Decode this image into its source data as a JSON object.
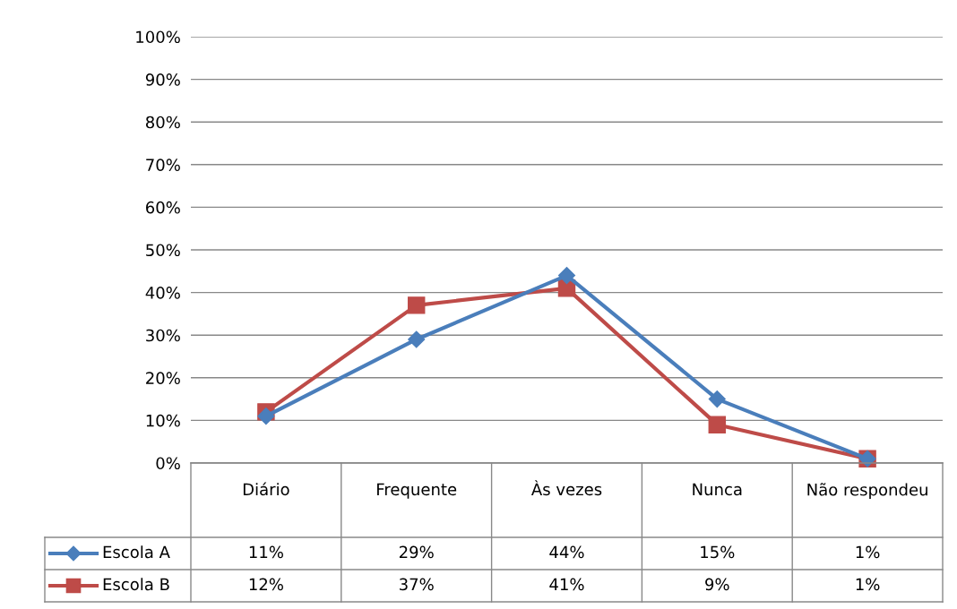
{
  "chart_data": {
    "type": "line",
    "categories": [
      "Diário",
      "Frequente",
      "Às vezes",
      "Nunca",
      "Não respondeu"
    ],
    "ylim": [
      0,
      100
    ],
    "yticks": [
      {
        "value": 0,
        "label": "0%"
      },
      {
        "value": 10,
        "label": "10%"
      },
      {
        "value": 20,
        "label": "20%"
      },
      {
        "value": 30,
        "label": "30%"
      },
      {
        "value": 40,
        "label": "40%"
      },
      {
        "value": 50,
        "label": "50%"
      },
      {
        "value": 60,
        "label": "60%"
      },
      {
        "value": 70,
        "label": "70%"
      },
      {
        "value": 80,
        "label": "80%"
      },
      {
        "value": 90,
        "label": "90%"
      },
      {
        "value": 100,
        "label": "100%"
      }
    ],
    "grid": "y",
    "legend": "bottom",
    "series": [
      {
        "name": "Escola A",
        "color": "#4a7ebb",
        "marker": "diamond",
        "values": [
          11,
          29,
          44,
          15,
          1
        ],
        "value_labels": [
          "11%",
          "29%",
          "44%",
          "15%",
          "1%"
        ]
      },
      {
        "name": "Escola B",
        "color": "#be4b48",
        "marker": "square",
        "values": [
          12,
          37,
          41,
          9,
          1
        ],
        "value_labels": [
          "12%",
          "37%",
          "41%",
          "9%",
          "1%"
        ]
      }
    ]
  }
}
